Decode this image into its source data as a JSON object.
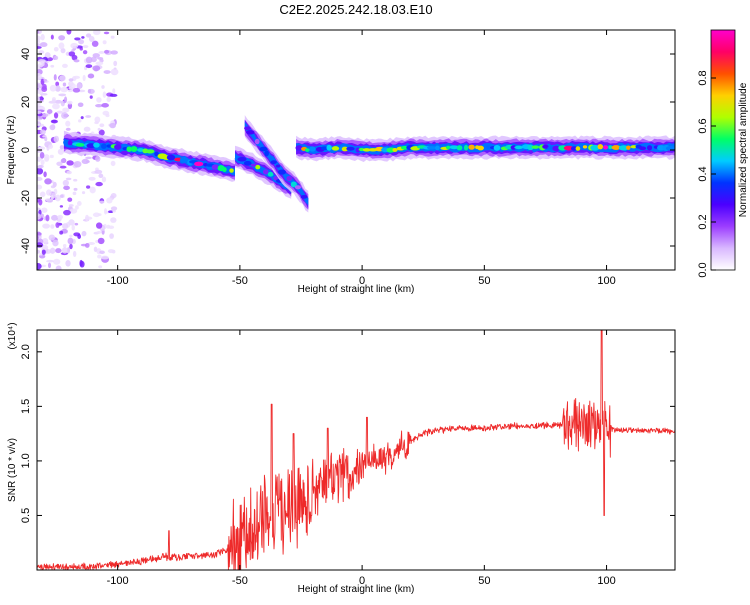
{
  "title": "C2E2.2025.242.18.03.E10",
  "chart_data": [
    {
      "type": "heatmap",
      "xlabel": "Height of straight line (km)",
      "ylabel": "Frequency (Hz)",
      "xlim": [
        -133,
        128
      ],
      "ylim": [
        -50,
        50
      ],
      "xticks": [
        -100,
        -50,
        0,
        50,
        100
      ],
      "xtick_labels": [
        "-100",
        "-50",
        "0",
        "50",
        "100"
      ],
      "yticks": [
        -40,
        -20,
        0,
        20,
        40
      ],
      "ytick_labels": [
        "-40",
        "-20",
        "0",
        "20",
        "40"
      ],
      "colorbar": {
        "label": "Normalized spectral amplitude",
        "range": [
          0,
          1
        ],
        "ticks": [
          0.0,
          0.2,
          0.4,
          0.6,
          0.8
        ],
        "tick_labels": [
          "0.0",
          "0.2",
          "0.4",
          "0.6",
          "0.8"
        ],
        "colormap": [
          "#ffffff",
          "#d9b8ff",
          "#9c3dff",
          "#4b00ff",
          "#0033ff",
          "#00ccff",
          "#00ff66",
          "#b0ff00",
          "#ffd000",
          "#ff5000",
          "#ff0066",
          "#ff00cc"
        ]
      },
      "ridges": [
        {
          "x": [
            -122,
            -110,
            -100,
            -90,
            -80,
            -70,
            -60,
            -52
          ],
          "y": [
            3,
            2,
            1,
            0,
            -3,
            -5,
            -7,
            -9
          ],
          "amplitude": 0.6
        },
        {
          "x": [
            -52,
            -45,
            -38,
            -32,
            -29
          ],
          "y": [
            -3,
            -6,
            -10,
            -14,
            -16
          ],
          "amplitude": 0.45
        },
        {
          "x": [
            -48,
            -44,
            -40,
            -36,
            -32,
            -26,
            -22
          ],
          "y": [
            10,
            5,
            0,
            -5,
            -10,
            -16,
            -22
          ],
          "amplitude": 0.35
        },
        {
          "x": [
            -27,
            -20,
            -10,
            0,
            10,
            20,
            40,
            60,
            80,
            95,
            110,
            128
          ],
          "y": [
            1,
            0,
            1,
            0,
            0,
            1,
            1,
            1,
            1,
            1,
            1,
            1
          ],
          "amplitude": 0.7
        }
      ]
    },
    {
      "type": "line",
      "xlabel": "Height of straight line (km)",
      "ylabel": "SNR (10 * v/v)",
      "scale_label": "(x10⁴)",
      "color": "#ee2a2a",
      "xlim": [
        -133,
        128
      ],
      "ylim": [
        0,
        2.2
      ],
      "xticks": [
        -100,
        -50,
        0,
        50,
        100
      ],
      "xtick_labels": [
        "-100",
        "-50",
        "0",
        "50",
        "100"
      ],
      "yticks": [
        0.5,
        1.0,
        1.5,
        2.0
      ],
      "ytick_labels": [
        "0.5",
        "1.0",
        "1.5",
        "2.0"
      ],
      "envelope": {
        "x": [
          -133,
          -110,
          -100,
          -90,
          -80,
          -70,
          -60,
          -50,
          -45,
          -40,
          -35,
          -30,
          -25,
          -20,
          -15,
          -10,
          -5,
          0,
          5,
          10,
          15,
          20,
          25,
          30,
          40,
          50,
          60,
          70,
          80,
          85,
          90,
          95,
          100,
          105,
          110,
          120,
          128
        ],
        "y": [
          0.02,
          0.03,
          0.05,
          0.08,
          0.12,
          0.12,
          0.14,
          0.25,
          0.35,
          0.45,
          0.55,
          0.6,
          0.62,
          0.7,
          0.78,
          0.85,
          0.9,
          0.95,
          1.0,
          1.05,
          1.1,
          1.18,
          1.25,
          1.28,
          1.3,
          1.3,
          1.32,
          1.32,
          1.33,
          1.34,
          1.33,
          1.32,
          1.3,
          1.28,
          1.28,
          1.28,
          1.27
        ]
      },
      "peaks": [
        {
          "x": -79,
          "y": 0.36
        },
        {
          "x": -37,
          "y": 1.52
        },
        {
          "x": -28,
          "y": 1.25
        },
        {
          "x": -14,
          "y": 1.3
        },
        {
          "x": 2,
          "y": 1.4
        },
        {
          "x": 98,
          "y": 2.2
        },
        {
          "x": 99,
          "y": 0.5
        }
      ]
    }
  ]
}
